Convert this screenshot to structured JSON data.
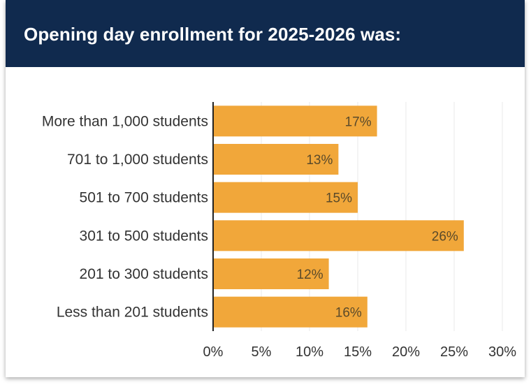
{
  "header": {
    "title": "Opening day enrollment for 2025-2026 was:"
  },
  "colors": {
    "header_bg": "#102a4e",
    "bar": "#f1a73a",
    "grid": "#e8e8e8",
    "axis": "#222222"
  },
  "chart_data": {
    "type": "bar",
    "orientation": "horizontal",
    "title": "Opening day enrollment for 2025-2026 was:",
    "categories": [
      "More than 1,000 students",
      "701 to 1,000 students",
      "501 to 700 students",
      "301 to 500 students",
      "201 to 300 students",
      "Less than 201 students"
    ],
    "values": [
      17,
      13,
      15,
      26,
      12,
      16
    ],
    "data_labels": [
      "17%",
      "13%",
      "15%",
      "26%",
      "12%",
      "16%"
    ],
    "xlim": [
      0,
      30
    ],
    "xticks": [
      0,
      5,
      10,
      15,
      20,
      25,
      30
    ],
    "xtick_labels": [
      "0%",
      "5%",
      "10%",
      "15%",
      "20%",
      "25%",
      "30%"
    ],
    "xlabel": "",
    "ylabel": "",
    "grid": true
  }
}
